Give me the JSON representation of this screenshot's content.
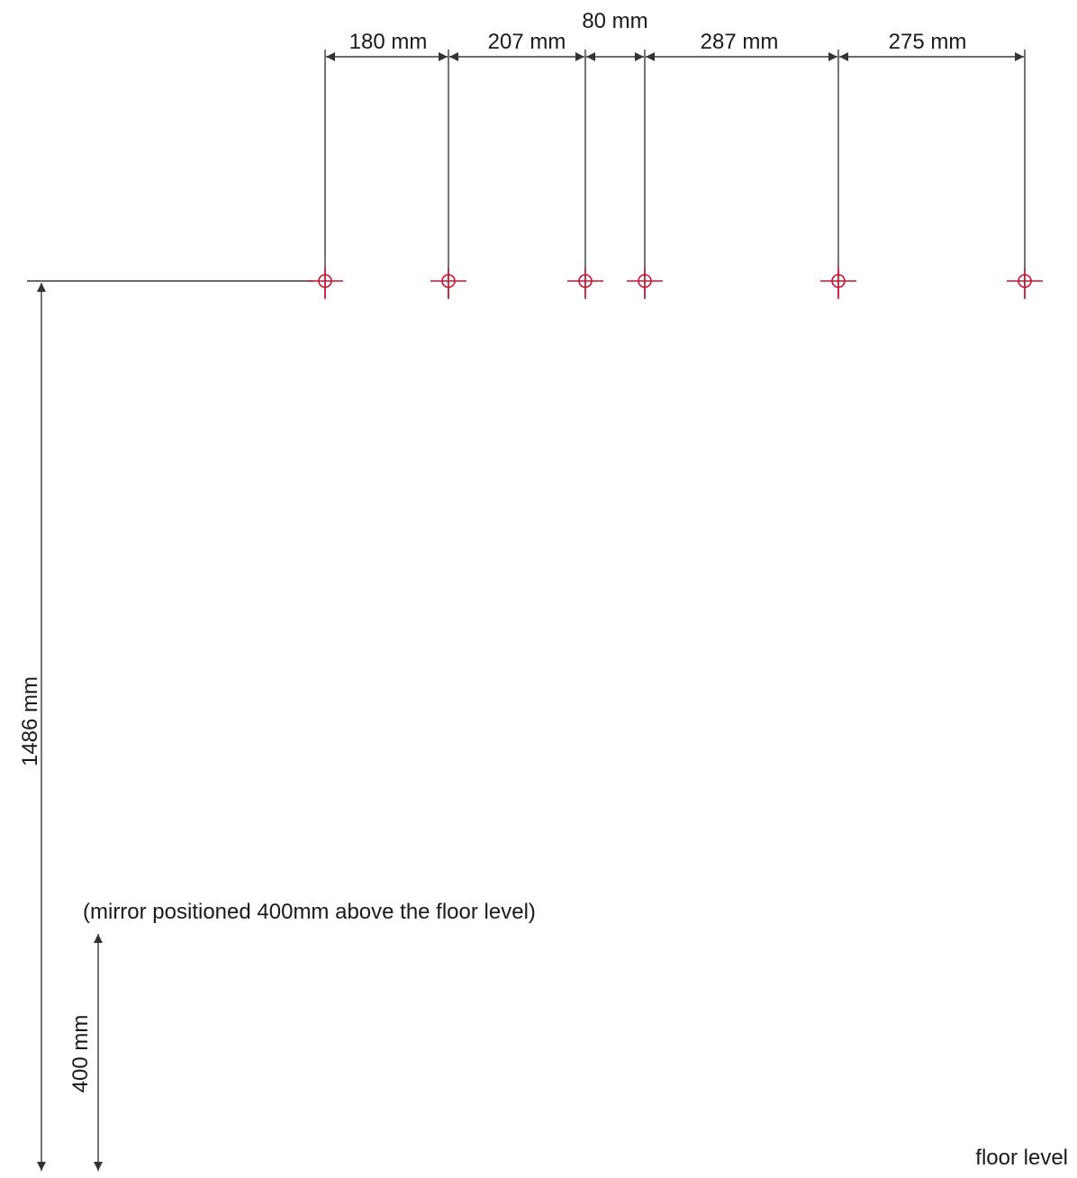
{
  "spacings": [
    {
      "id": "s1",
      "label": "180 mm",
      "value_mm": 180
    },
    {
      "id": "s2",
      "label": "207 mm",
      "value_mm": 207
    },
    {
      "id": "s3",
      "label": "80 mm",
      "value_mm": 80
    },
    {
      "id": "s4",
      "label": "287 mm",
      "value_mm": 287
    },
    {
      "id": "s5",
      "label": "275 mm",
      "value_mm": 275
    }
  ],
  "fixing_points": 6,
  "vertical": {
    "height_label": "1486 mm",
    "height_mm": 1486,
    "mirror_label": "400 mm",
    "mirror_mm": 400
  },
  "note": "(mirror positioned 400mm above the floor level)",
  "floor_label": "floor level",
  "colors": {
    "marker": "#c8102e",
    "line": "#3a3a3a"
  }
}
